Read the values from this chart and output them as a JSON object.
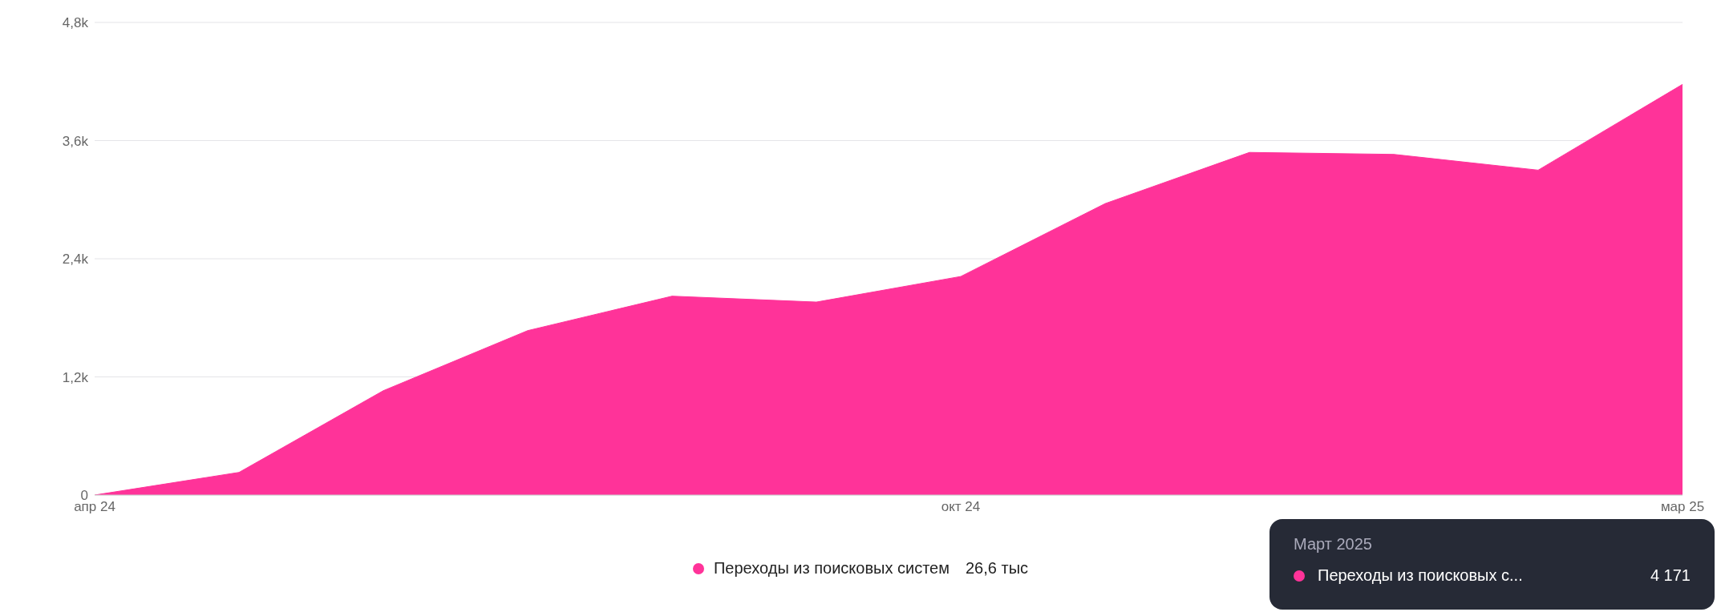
{
  "chart_data": {
    "type": "area",
    "categories": [
      "апр 24",
      null,
      null,
      null,
      null,
      null,
      "окт 24",
      null,
      null,
      null,
      null,
      "мар 25"
    ],
    "series": [
      {
        "name": "Переходы из поисковых систем",
        "color": "#ff3399",
        "values": [
          0,
          230,
          1060,
          1670,
          2020,
          1960,
          2220,
          2960,
          3480,
          3460,
          3300,
          4171
        ]
      }
    ],
    "ylim": [
      0,
      4800
    ],
    "yticks": [
      {
        "value": 0,
        "label": "0"
      },
      {
        "value": 1200,
        "label": "1,2k"
      },
      {
        "value": 2400,
        "label": "2,4k"
      },
      {
        "value": 3600,
        "label": "3,6k"
      },
      {
        "value": 4800,
        "label": "4,8k"
      }
    ],
    "grid": "y",
    "legend": "bottom",
    "annotations": [
      "26,6 тыс",
      "Март 2025",
      "Переходы из поисковых с...",
      "4 171"
    ]
  }
}
